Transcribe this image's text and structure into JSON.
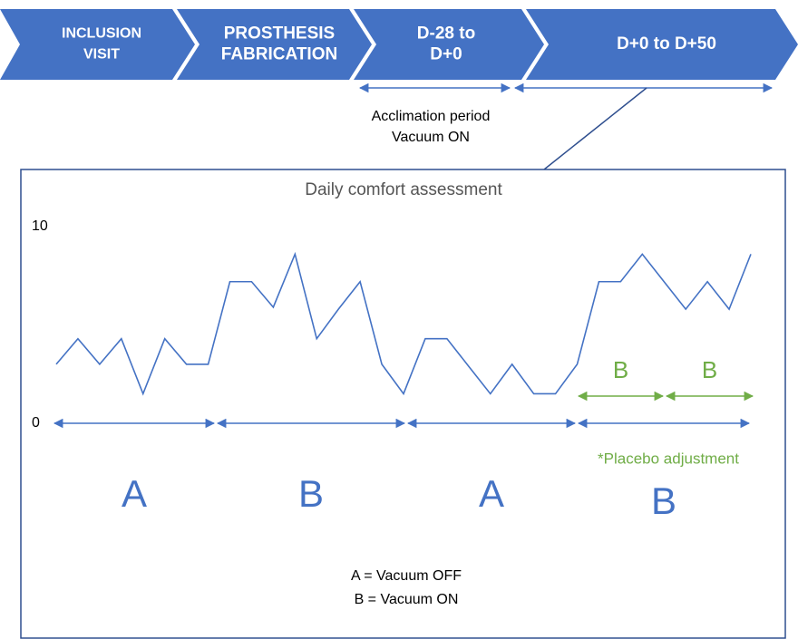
{
  "steps": [
    {
      "lines": [
        "INCLUSION",
        "VISIT"
      ]
    },
    {
      "lines": [
        "PROSTHESIS",
        "FABRICATION"
      ]
    },
    {
      "lines": [
        "D-28 to",
        "D+0"
      ]
    },
    {
      "lines": [
        "D+0 to D+50"
      ]
    }
  ],
  "acclimation": [
    "Acclimation period",
    "Vacuum ON"
  ],
  "chart": {
    "type": "line",
    "title": "Daily comfort assessment",
    "values": [
      3,
      4.3,
      3,
      4.3,
      1.5,
      4.3,
      3,
      3,
      7.2,
      7.2,
      5.9,
      8.6,
      4.3,
      5.8,
      7.2,
      3,
      1.5,
      4.3,
      4.3,
      2.9,
      1.5,
      3,
      1.5,
      1.5,
      3,
      7.2,
      7.2,
      8.6,
      7.2,
      5.8,
      7.2,
      5.8,
      8.6
    ],
    "color": "#4472c4",
    "ylim": [
      0,
      10
    ],
    "yticks": [
      0,
      10
    ]
  },
  "phases": [
    "A",
    "B",
    "A",
    "B"
  ],
  "placebo": [
    "B",
    "B"
  ],
  "placebo_note": "*Placebo adjustment",
  "legend": [
    "A = Vacuum OFF",
    "B = Vacuum ON"
  ]
}
